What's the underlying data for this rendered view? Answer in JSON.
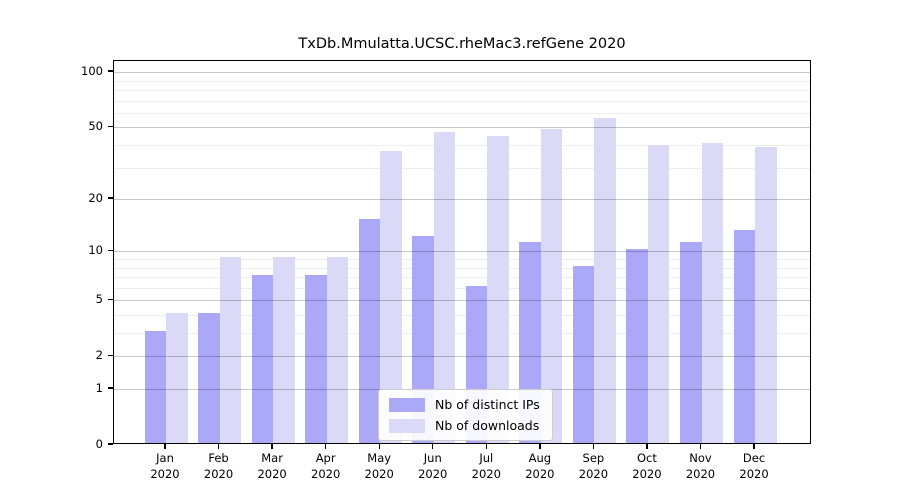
{
  "title": "TxDb.Mmulatta.UCSC.rheMac3.refGene 2020",
  "chart_data": {
    "type": "bar",
    "title": "TxDb.Mmulatta.UCSC.rheMac3.refGene 2020",
    "scale": "log1p",
    "grid": true,
    "legend_position": "lower center",
    "categories": [
      "Jan",
      "Feb",
      "Mar",
      "Apr",
      "May",
      "Jun",
      "Jul",
      "Aug",
      "Sep",
      "Oct",
      "Nov",
      "Dec"
    ],
    "category_year": "2020",
    "series": [
      {
        "name": "Nb of distinct IPs",
        "color": "#aaa8f7",
        "values": [
          3,
          4,
          7,
          7,
          15,
          12,
          6,
          11,
          8,
          10,
          11,
          13
        ]
      },
      {
        "name": "Nb of downloads",
        "color": "#dbd9f8",
        "values": [
          4,
          9,
          9,
          9,
          36,
          46,
          44,
          48,
          55,
          39,
          40,
          38
        ]
      }
    ],
    "xlabel": "",
    "ylabel": "",
    "yticks": [
      0,
      1,
      2,
      5,
      10,
      20,
      50,
      100
    ],
    "minor_yticks": [
      3,
      4,
      6,
      7,
      8,
      9,
      30,
      40,
      60,
      70,
      80,
      90
    ],
    "ylim": [
      0,
      115
    ]
  },
  "colors": {
    "distinct_ips": "#aaa8f7",
    "downloads": "#dbd9f8",
    "axis": "#000000",
    "background": "#ffffff"
  }
}
